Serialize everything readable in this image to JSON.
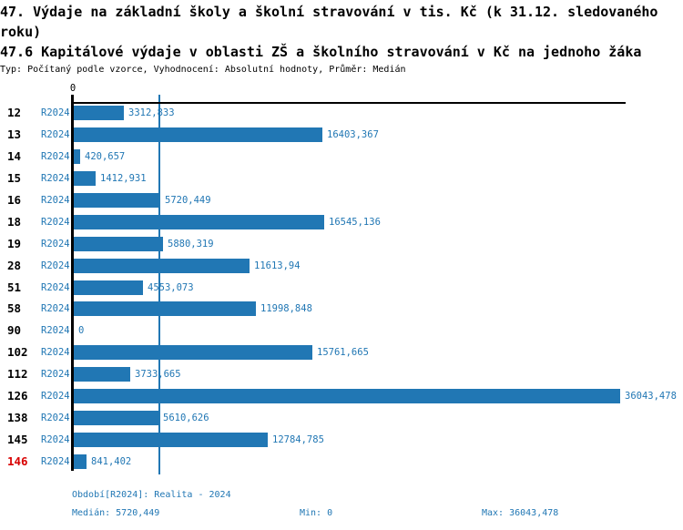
{
  "title": {
    "line1": "47. Výdaje na základní školy a školní stravování v tis. Kč (k 31.12. sledovaného roku)",
    "line2": "47.6 Kapitálové výdaje v oblasti ZŠ a školního stravování v Kč na jednoho žáka",
    "subtitle": "Typ: Počítaný podle vzorce, Vyhodnocení: Absolutní hodnoty, Průměr: Medián"
  },
  "chart_data": {
    "type": "bar",
    "orientation": "horizontal",
    "categories": [
      "12",
      "13",
      "14",
      "15",
      "16",
      "18",
      "19",
      "28",
      "51",
      "58",
      "90",
      "102",
      "112",
      "126",
      "138",
      "145",
      "146"
    ],
    "series_label": "R2024",
    "values": [
      3312.833,
      16403.367,
      420.657,
      1412.931,
      5720.449,
      16545.136,
      5880.319,
      11613.94,
      4553.073,
      11998.848,
      0,
      15761.665,
      3733.665,
      36043.478,
      5610.626,
      12784.785,
      841.402
    ],
    "value_labels": [
      "3312,833",
      "16403,367",
      "420,657",
      "1412,931",
      "5720,449",
      "16545,136",
      "5880,319",
      "11613,94",
      "4553,073",
      "11998,848",
      "0",
      "15761,665",
      "3733,665",
      "36043,478",
      "5610,626",
      "12784,785",
      "841,402"
    ],
    "axis_zero_label": "0",
    "xlim": [
      0,
      36043.478
    ],
    "median": 5720.449,
    "highlight_category": "146",
    "grid": false,
    "colors": {
      "bar": "#2177b4",
      "text_blue": "#2177b4",
      "median_line": "#2177b4",
      "highlight_red": "#d80000",
      "axis_black": "#000000"
    }
  },
  "footer": {
    "period": "Období[R2024]: Realita - 2024",
    "median": "Medián: 5720,449",
    "min": "Min: 0",
    "max": "Max: 36043,478"
  }
}
